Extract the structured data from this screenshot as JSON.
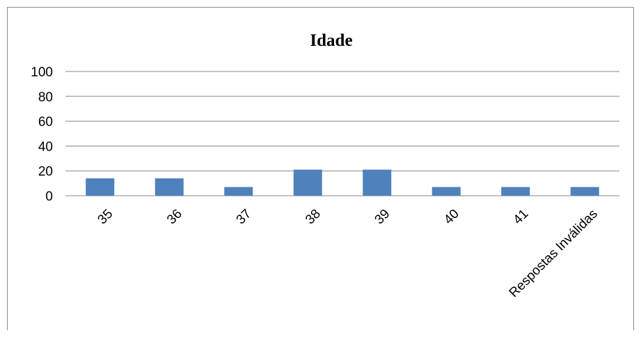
{
  "chart_data": {
    "type": "bar",
    "title": "Idade",
    "xlabel": "",
    "ylabel": "",
    "categories": [
      "35",
      "36",
      "37",
      "38",
      "39",
      "40",
      "41",
      "Respostas Inválidas"
    ],
    "values": [
      14,
      14,
      7,
      21,
      21,
      7,
      7,
      7
    ],
    "ylim": [
      0,
      100
    ],
    "yticks": [
      0,
      20,
      40,
      60,
      80,
      100
    ],
    "grid": true,
    "legend": "none",
    "colors": {
      "bar": "#4f81bd",
      "grid": "#868686",
      "border": "#8c8c8c"
    }
  }
}
